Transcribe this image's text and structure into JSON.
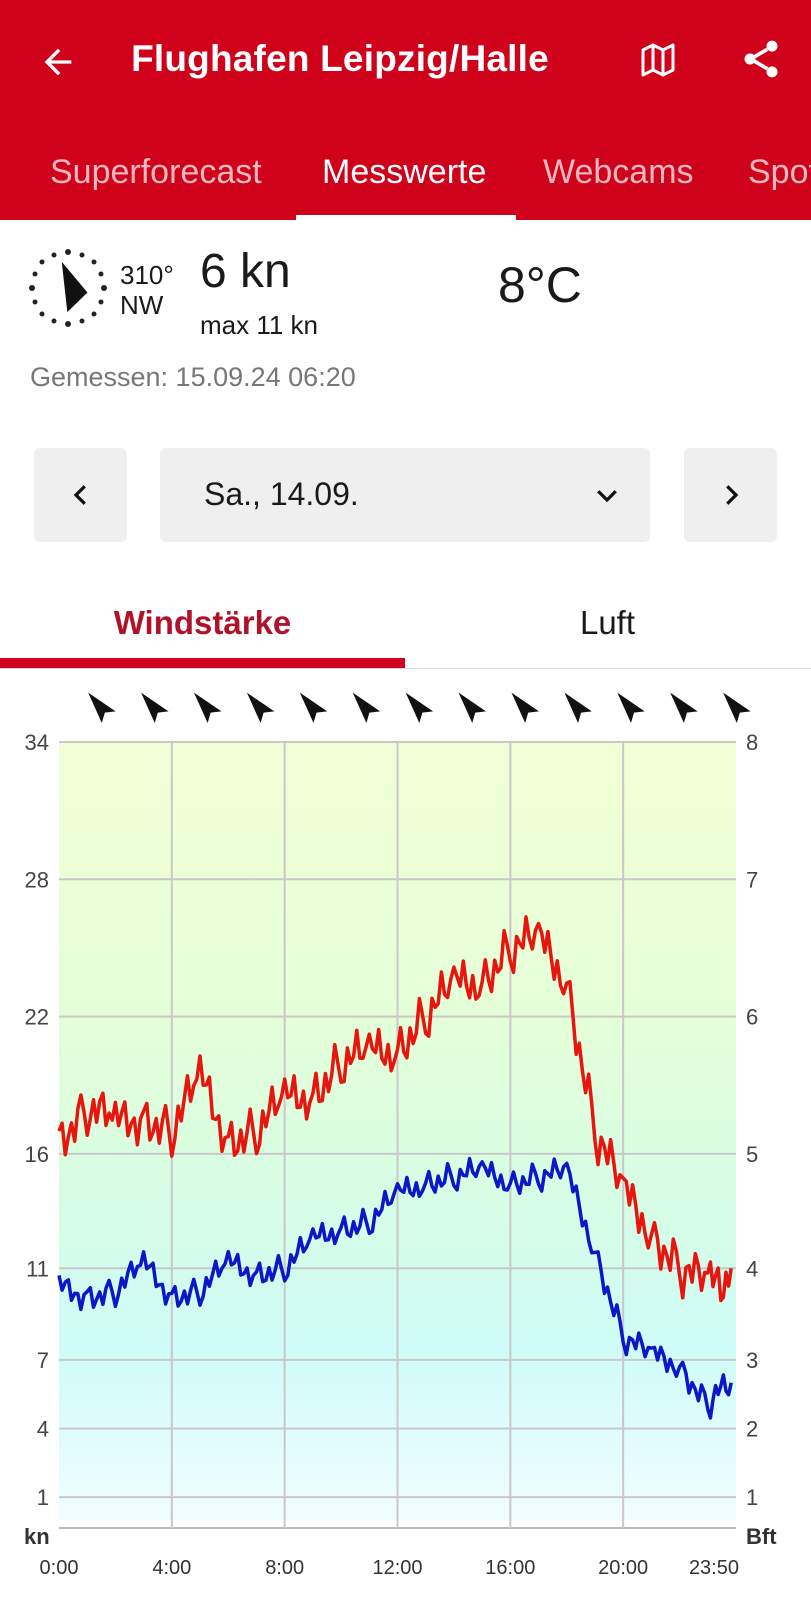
{
  "header": {
    "title": "Flughafen Leipzig/Halle",
    "tabs": [
      {
        "label": "Superforecast",
        "active": false
      },
      {
        "label": "Messwerte",
        "active": true
      },
      {
        "label": "Webcams",
        "active": false
      },
      {
        "label": "Spot",
        "active": false
      }
    ]
  },
  "current": {
    "direction_deg": "310°",
    "direction_name": "NW",
    "speed": "6 kn",
    "max": "max 11 kn",
    "temperature": "8°C",
    "measured": "Gemessen: 15.09.24 06:20"
  },
  "date_nav": {
    "selected": "Sa., 14.09."
  },
  "subtabs": [
    {
      "label": "Windstärke",
      "active": true
    },
    {
      "label": "Luft",
      "active": false
    }
  ],
  "colors": {
    "brand": "#d0021b",
    "gust_line": "#e8150f",
    "mean_line": "#0b18c8",
    "grid": "#c8c8c8"
  },
  "icons": [
    "arrow-left-icon",
    "map-icon",
    "share-icon",
    "compass-icon",
    "chevron-left-icon",
    "chevron-down-icon",
    "chevron-right-icon"
  ],
  "chart_data": {
    "type": "line",
    "y_left_unit": "kn",
    "y_right_unit": "Bft",
    "y_left_ticks": [
      34,
      28,
      22,
      16,
      11,
      7,
      4,
      1
    ],
    "y_right_ticks": [
      8,
      7,
      6,
      5,
      4,
      3,
      2,
      1
    ],
    "x_ticks": [
      "0:00",
      "4:00",
      "8:00",
      "12:00",
      "16:00",
      "20:00",
      "23:50"
    ],
    "ylim": [
      0,
      34
    ],
    "grid": true,
    "legend": "none",
    "series": [
      {
        "color": "#e8150f",
        "x": [
          0,
          1,
          2,
          3,
          4,
          5,
          6,
          7,
          8,
          9,
          10,
          11,
          12,
          13,
          14,
          15,
          16,
          17,
          18,
          19,
          20,
          21,
          22,
          23,
          23.83
        ],
        "values": [
          17,
          18,
          17,
          18,
          17,
          19,
          17,
          17,
          18,
          19,
          20,
          20,
          21,
          22,
          23,
          24,
          25,
          25,
          24,
          17,
          14,
          13,
          11,
          10,
          11
        ]
      },
      {
        "color": "#0b18c8",
        "x": [
          0,
          1,
          2,
          3,
          4,
          5,
          6,
          7,
          8,
          9,
          10,
          11,
          12,
          13,
          14,
          15,
          16,
          17,
          18,
          19,
          20,
          21,
          22,
          23,
          23.83
        ],
        "values": [
          10,
          10,
          10,
          11,
          10,
          10,
          11,
          11,
          11,
          12,
          13,
          13,
          14,
          15,
          15,
          15,
          15,
          15,
          15,
          12,
          8,
          7,
          7,
          5,
          6
        ]
      }
    ],
    "direction_arrows_count": 13
  }
}
